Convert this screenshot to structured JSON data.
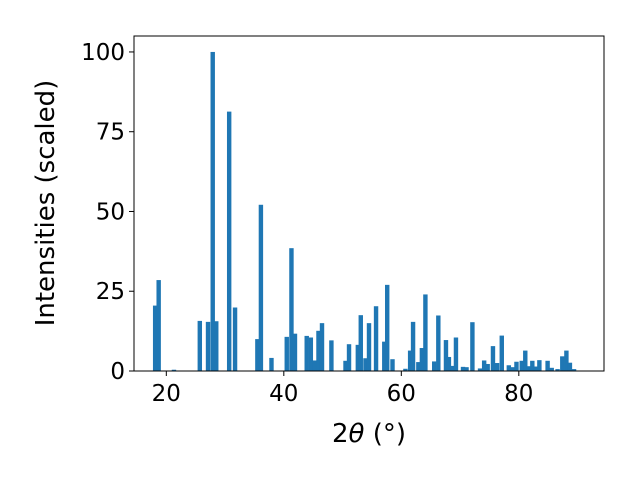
{
  "chart_data": {
    "type": "bar",
    "xlabel_prefix": "2",
    "xlabel_symbol": "θ",
    "xlabel_unit": " (°)",
    "ylabel": "Intensities (scaled)",
    "xlim": [
      14.5,
      94.5
    ],
    "ylim": [
      0,
      105
    ],
    "xticks": [
      20,
      40,
      60,
      80
    ],
    "yticks": [
      0,
      25,
      50,
      75,
      100
    ],
    "bar_width": 0.75,
    "color": "#1f77b4",
    "grid": false,
    "bars": [
      {
        "x": 18.1,
        "y": 20.5
      },
      {
        "x": 18.7,
        "y": 28.5
      },
      {
        "x": 21.3,
        "y": 0.4
      },
      {
        "x": 25.7,
        "y": 15.7
      },
      {
        "x": 27.1,
        "y": 15.4
      },
      {
        "x": 27.9,
        "y": 100
      },
      {
        "x": 28.5,
        "y": 15.6
      },
      {
        "x": 30.7,
        "y": 81.3
      },
      {
        "x": 31.7,
        "y": 19.9
      },
      {
        "x": 35.5,
        "y": 10.0
      },
      {
        "x": 36.1,
        "y": 52.1
      },
      {
        "x": 37.9,
        "y": 4.1
      },
      {
        "x": 40.5,
        "y": 10.7
      },
      {
        "x": 41.3,
        "y": 38.5
      },
      {
        "x": 41.9,
        "y": 11.7
      },
      {
        "x": 43.9,
        "y": 11.0
      },
      {
        "x": 44.6,
        "y": 10.5
      },
      {
        "x": 45.3,
        "y": 3.3
      },
      {
        "x": 45.9,
        "y": 12.6
      },
      {
        "x": 46.5,
        "y": 15.0
      },
      {
        "x": 48.1,
        "y": 9.6
      },
      {
        "x": 50.5,
        "y": 3.2
      },
      {
        "x": 51.1,
        "y": 8.4
      },
      {
        "x": 52.6,
        "y": 8.2
      },
      {
        "x": 53.1,
        "y": 17.5
      },
      {
        "x": 53.9,
        "y": 4.0
      },
      {
        "x": 54.5,
        "y": 15.0
      },
      {
        "x": 55.7,
        "y": 20.3
      },
      {
        "x": 57.1,
        "y": 9.2
      },
      {
        "x": 57.6,
        "y": 27.0
      },
      {
        "x": 58.5,
        "y": 3.7
      },
      {
        "x": 60.7,
        "y": 0.7
      },
      {
        "x": 61.5,
        "y": 6.4
      },
      {
        "x": 62.0,
        "y": 15.4
      },
      {
        "x": 62.9,
        "y": 2.8
      },
      {
        "x": 63.5,
        "y": 7.2
      },
      {
        "x": 64.1,
        "y": 24.0
      },
      {
        "x": 65.6,
        "y": 3.0
      },
      {
        "x": 66.3,
        "y": 17.4
      },
      {
        "x": 67.6,
        "y": 9.7
      },
      {
        "x": 68.1,
        "y": 4.4
      },
      {
        "x": 68.7,
        "y": 1.6
      },
      {
        "x": 69.3,
        "y": 10.5
      },
      {
        "x": 70.5,
        "y": 1.3
      },
      {
        "x": 71.1,
        "y": 1.2
      },
      {
        "x": 72.1,
        "y": 15.3
      },
      {
        "x": 73.4,
        "y": 0.8
      },
      {
        "x": 74.1,
        "y": 3.3
      },
      {
        "x": 74.7,
        "y": 2.2
      },
      {
        "x": 75.6,
        "y": 7.8
      },
      {
        "x": 76.3,
        "y": 2.5
      },
      {
        "x": 77.1,
        "y": 11.1
      },
      {
        "x": 78.3,
        "y": 1.8
      },
      {
        "x": 78.9,
        "y": 1.2
      },
      {
        "x": 79.6,
        "y": 2.9
      },
      {
        "x": 80.5,
        "y": 3.2
      },
      {
        "x": 81.1,
        "y": 6.4
      },
      {
        "x": 81.7,
        "y": 1.5
      },
      {
        "x": 82.3,
        "y": 3.2
      },
      {
        "x": 82.9,
        "y": 1.4
      },
      {
        "x": 83.5,
        "y": 3.4
      },
      {
        "x": 84.9,
        "y": 3.2
      },
      {
        "x": 85.6,
        "y": 1.0
      },
      {
        "x": 86.6,
        "y": 0.6
      },
      {
        "x": 87.4,
        "y": 4.6
      },
      {
        "x": 88.1,
        "y": 6.4
      },
      {
        "x": 88.7,
        "y": 2.6
      },
      {
        "x": 89.4,
        "y": 0.6
      }
    ]
  }
}
